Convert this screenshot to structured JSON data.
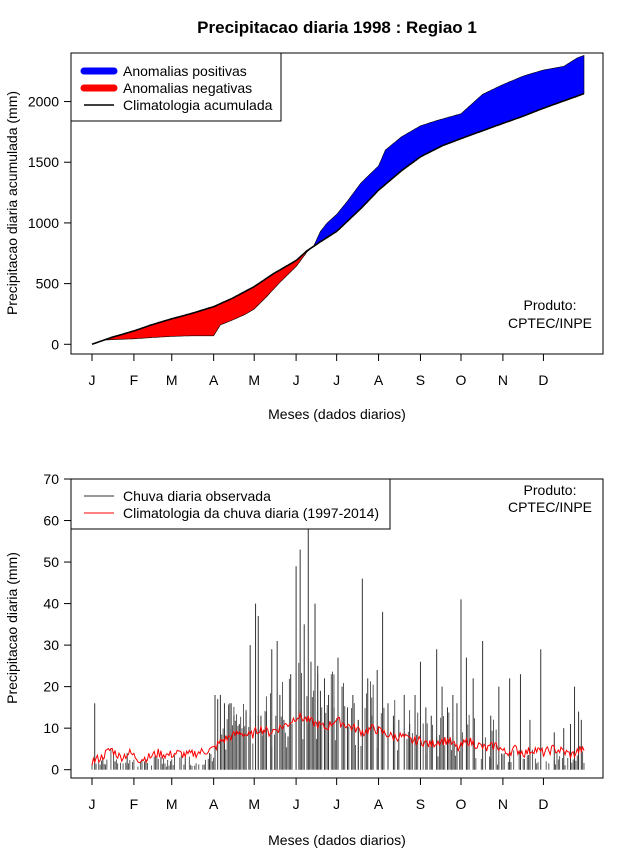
{
  "title": "Precipitacao diaria 1998 : Regiao 1",
  "credit": {
    "line1": "Produto:",
    "line2": "CPTEC/INPE"
  },
  "chart_data": [
    {
      "type": "area",
      "title": "Precipitacao diaria 1998 : Regiao 1",
      "xlabel": "Meses (dados diarios)",
      "ylabel": "Precipitacao diaria acumulada (mm)",
      "xlim": [
        1,
        365
      ],
      "ylim": [
        -80,
        2400
      ],
      "month_labels": [
        "J",
        "F",
        "M",
        "A",
        "M",
        "J",
        "J",
        "A",
        "S",
        "O",
        "N",
        "D"
      ],
      "month_days": [
        1,
        32,
        60,
        91,
        121,
        152,
        182,
        213,
        244,
        274,
        305,
        335
      ],
      "yticks": [
        0,
        500,
        1000,
        1500,
        2000
      ],
      "legend": [
        "Anomalias positivas",
        "Anomalias negativas",
        "Climatologia acumulada"
      ],
      "colors": {
        "positive": "#0000ff",
        "negative": "#ff0000",
        "climatology": "#000000"
      },
      "climatology_accumulated": {
        "days": [
          1,
          15,
          32,
          45,
          60,
          75,
          91,
          105,
          121,
          135,
          152,
          160,
          170,
          182,
          200,
          213,
          230,
          244,
          260,
          274,
          290,
          305,
          320,
          335,
          350,
          365
        ],
        "values": [
          0,
          55,
          110,
          160,
          210,
          255,
          310,
          380,
          475,
          580,
          690,
          770,
          845,
          930,
          1120,
          1270,
          1430,
          1545,
          1635,
          1695,
          1760,
          1820,
          1880,
          1945,
          2005,
          2065
        ]
      },
      "observed_accumulated": {
        "days": [
          1,
          10,
          20,
          32,
          45,
          60,
          75,
          91,
          96,
          105,
          115,
          121,
          130,
          140,
          152,
          160,
          165,
          170,
          175,
          182,
          190,
          200,
          213,
          218,
          230,
          244,
          255,
          274,
          290,
          305,
          320,
          335,
          350,
          360,
          365
        ],
        "values": [
          0,
          35,
          40,
          45,
          55,
          65,
          70,
          70,
          160,
          200,
          250,
          290,
          390,
          510,
          640,
          760,
          810,
          930,
          1000,
          1070,
          1180,
          1330,
          1470,
          1600,
          1710,
          1800,
          1840,
          1900,
          2060,
          2140,
          2210,
          2260,
          2290,
          2360,
          2380
        ]
      }
    },
    {
      "type": "line",
      "xlabel": "Meses (dados diarios)",
      "ylabel": "Precipitacao diaria (mm)",
      "xlim": [
        1,
        365
      ],
      "ylim": [
        -2,
        70
      ],
      "month_labels": [
        "J",
        "F",
        "M",
        "A",
        "M",
        "J",
        "J",
        "A",
        "S",
        "O",
        "N",
        "D"
      ],
      "month_days": [
        1,
        32,
        60,
        91,
        121,
        152,
        182,
        213,
        244,
        274,
        305,
        335
      ],
      "yticks": [
        0,
        10,
        20,
        30,
        40,
        50,
        60,
        70
      ],
      "legend": [
        "Chuva diaria observada",
        "Climatologia da chuva diaria (1997-2014)"
      ],
      "colors": {
        "observed": "#333333",
        "climatology": "#ff0000"
      },
      "observed_daily_peaks": {
        "days": [
          3,
          9,
          18,
          27,
          40,
          52,
          70,
          88,
          92,
          94,
          96,
          99,
          103,
          106,
          110,
          115,
          118,
          122,
          124,
          126,
          130,
          134,
          138,
          140,
          143,
          146,
          148,
          152,
          155,
          158,
          161,
          163,
          166,
          168,
          170,
          173,
          176,
          180,
          183,
          186,
          190,
          194,
          198,
          201,
          205,
          208,
          212,
          216,
          220,
          224,
          228,
          232,
          236,
          240,
          244,
          248,
          252,
          256,
          260,
          264,
          268,
          271,
          274,
          278,
          283,
          290,
          296,
          302,
          310,
          318,
          325,
          333,
          343,
          350,
          355,
          358,
          361,
          363
        ],
        "values": [
          16,
          3,
          2,
          4,
          2,
          3,
          3,
          4,
          18,
          17,
          18,
          16,
          16,
          13,
          11,
          14,
          30,
          40,
          37,
          13,
          14,
          29,
          31,
          18,
          12,
          8,
          23,
          49,
          53,
          35,
          63,
          26,
          40,
          25,
          19,
          22,
          18,
          15,
          27,
          20,
          15,
          18,
          12,
          46,
          22,
          13,
          24,
          38,
          16,
          13,
          12,
          18,
          11,
          18,
          26,
          15,
          13,
          29,
          20,
          15,
          18,
          16,
          41,
          27,
          22,
          31,
          13,
          20,
          22,
          23,
          12,
          29,
          9,
          10,
          11,
          20,
          14,
          12
        ]
      },
      "climatology_daily": {
        "days": [
          1,
          8,
          15,
          22,
          29,
          36,
          43,
          50,
          57,
          64,
          71,
          78,
          85,
          91,
          97,
          104,
          111,
          118,
          125,
          132,
          139,
          146,
          153,
          160,
          167,
          174,
          181,
          188,
          195,
          202,
          209,
          216,
          223,
          230,
          237,
          244,
          251,
          258,
          265,
          272,
          279,
          286,
          293,
          300,
          307,
          314,
          321,
          328,
          335,
          342,
          349,
          356,
          363,
          365
        ],
        "values": [
          2,
          3,
          5,
          3,
          4,
          2.5,
          3,
          4,
          3.5,
          4,
          3.5,
          4,
          4.5,
          5,
          7,
          8,
          9,
          8,
          10,
          9,
          10,
          11,
          13,
          12,
          11,
          10,
          12,
          11,
          10,
          9,
          10,
          9,
          8,
          8,
          7,
          7,
          6,
          7,
          7,
          5,
          7,
          6,
          5,
          6,
          4,
          5,
          4,
          5,
          4,
          5,
          4.5,
          3.5,
          5,
          4
        ]
      }
    }
  ]
}
